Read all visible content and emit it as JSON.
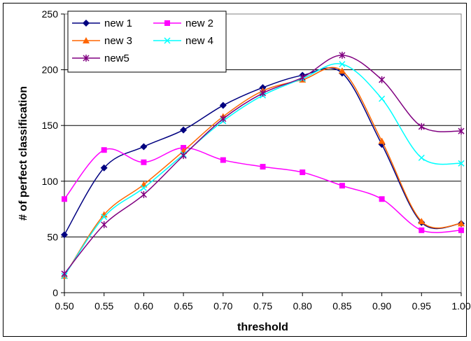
{
  "chart_data": {
    "type": "line",
    "title": "",
    "xlabel": "threshold",
    "ylabel": "# of perfect classification",
    "x": [
      0.5,
      0.55,
      0.6,
      0.65,
      0.7,
      0.75,
      0.8,
      0.85,
      0.9,
      0.95,
      1.0
    ],
    "x_tick_labels": [
      "0.50",
      "0.55",
      "0.60",
      "0.65",
      "0.70",
      "0.75",
      "0.80",
      "0.85",
      "0.90",
      "0.95",
      "1.00"
    ],
    "ylim": [
      0,
      250
    ],
    "y_ticks": [
      0,
      50,
      100,
      150,
      200,
      250
    ],
    "grid": "horizontal",
    "legend_position": "top-left",
    "series": [
      {
        "name": "new 1",
        "color": "#000080",
        "marker": "diamond",
        "values": [
          52,
          112,
          131,
          146,
          168,
          184,
          195,
          197,
          133,
          63,
          62
        ]
      },
      {
        "name": "new 2",
        "color": "#ff00ff",
        "marker": "square",
        "values": [
          84,
          128,
          117,
          130,
          119,
          113,
          108,
          96,
          84,
          56,
          56
        ]
      },
      {
        "name": "new 3",
        "color": "#ff6600",
        "marker": "triangle",
        "values": [
          15,
          70,
          97,
          127,
          158,
          181,
          191,
          199,
          136,
          64,
          62
        ]
      },
      {
        "name": "new 4",
        "color": "#00ffff",
        "marker": "x",
        "values": [
          15,
          68,
          94,
          124,
          154,
          177,
          192,
          205,
          174,
          121,
          116
        ]
      },
      {
        "name": "new5",
        "color": "#800080",
        "marker": "star",
        "values": [
          17,
          61,
          88,
          123,
          156,
          179,
          193,
          213,
          191,
          149,
          145
        ]
      }
    ]
  }
}
